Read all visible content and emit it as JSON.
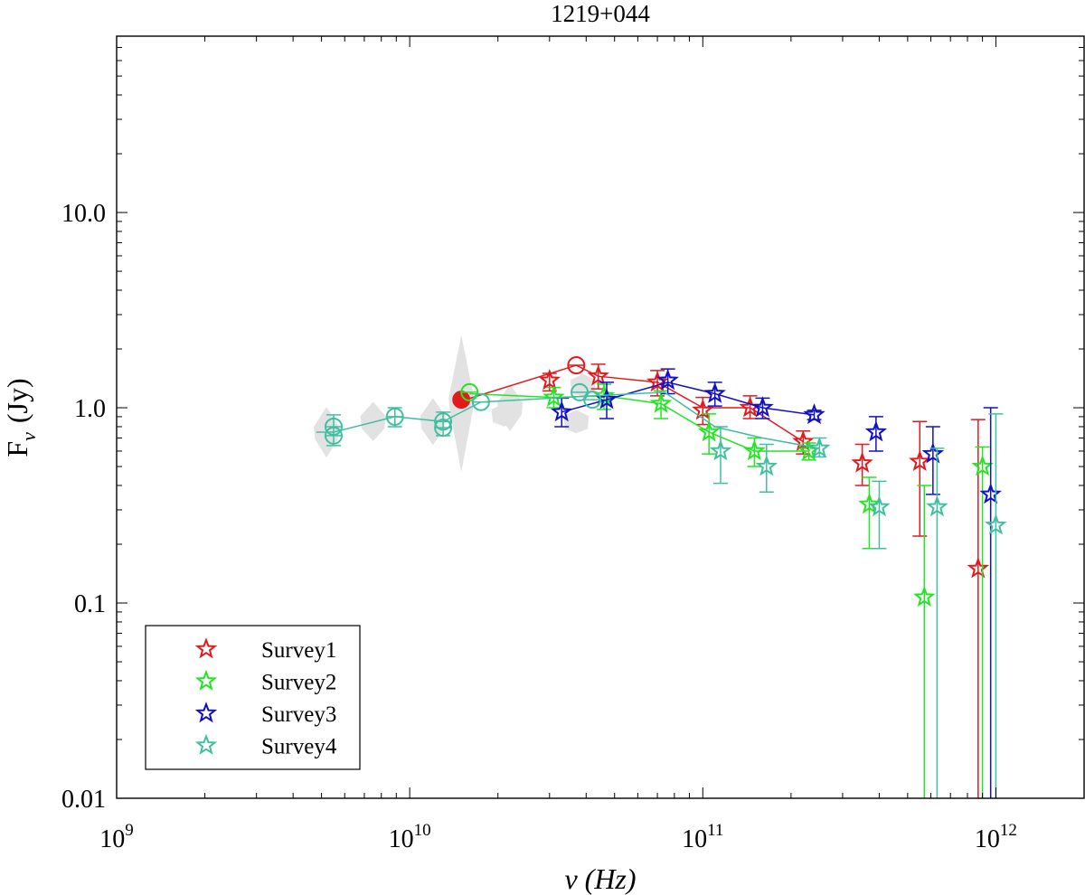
{
  "chart_data": {
    "type": "scatter",
    "title": "1219+044",
    "xlabel": "ν (Hz)",
    "ylabel": {
      "main": "F",
      "sub": "ν",
      "unit": "(Jy)"
    },
    "xscale": "log",
    "yscale": "log",
    "xlim": [
      1000000000.0,
      2000000000000.0
    ],
    "ylim": [
      0.01,
      80
    ],
    "x_ticks": [
      {
        "value": 1000000000.0,
        "base": "10",
        "exp": "9"
      },
      {
        "value": 10000000000.0,
        "base": "10",
        "exp": "10"
      },
      {
        "value": 100000000000.0,
        "base": "10",
        "exp": "11"
      },
      {
        "value": 1000000000000.0,
        "base": "10",
        "exp": "12"
      }
    ],
    "y_ticks": [
      {
        "value": 0.01,
        "label": "0.01"
      },
      {
        "value": 0.1,
        "label": "0.1"
      },
      {
        "value": 1,
        "label": "1.0"
      },
      {
        "value": 10,
        "label": "10.0"
      }
    ],
    "legend_position": "bottom-left",
    "series": [
      {
        "name": "Survey1",
        "color": "#e31a1c",
        "line": [
          [
            15500000000.0,
            1.1
          ],
          [
            37000000000.0,
            1.65
          ],
          [
            44000000000.0,
            1.45
          ],
          [
            70000000000.0,
            1.35
          ],
          [
            100000000000.0,
            1.0
          ],
          [
            145000000000.0,
            1.0
          ],
          [
            220000000000.0,
            0.67
          ]
        ],
        "circles": [
          {
            "x": 15000000000.0,
            "y": 1.1,
            "filled": true
          },
          {
            "x": 37000000000.0,
            "y": 1.65
          }
        ],
        "stars": [
          {
            "x": 30000000000.0,
            "y": 1.38,
            "lo": 1.22,
            "hi": 1.5
          },
          {
            "x": 44000000000.0,
            "y": 1.45,
            "lo": 1.25,
            "hi": 1.67
          },
          {
            "x": 70000000000.0,
            "y": 1.35,
            "lo": 1.15,
            "hi": 1.55
          },
          {
            "x": 100000000000.0,
            "y": 0.97,
            "lo": 0.82,
            "hi": 1.13
          },
          {
            "x": 145000000000.0,
            "y": 1.0,
            "lo": 0.88,
            "hi": 1.15
          },
          {
            "x": 220000000000.0,
            "y": 0.67,
            "lo": 0.58,
            "hi": 0.76
          },
          {
            "x": 350000000000.0,
            "y": 0.52,
            "lo": 0.4,
            "hi": 0.65
          },
          {
            "x": 550000000000.0,
            "y": 0.53,
            "lo": 0.22,
            "hi": 0.85
          },
          {
            "x": 870000000000.0,
            "y": 0.15,
            "lo": 0.01,
            "hi": 0.87
          }
        ]
      },
      {
        "name": "Survey2",
        "color": "#22e622",
        "line": [
          [
            16000000000.0,
            1.18
          ],
          [
            31000000000.0,
            1.13
          ],
          [
            46000000000.0,
            1.15
          ],
          [
            72000000000.0,
            1.05
          ],
          [
            105000000000.0,
            0.75
          ],
          [
            150000000000.0,
            0.6
          ],
          [
            230000000000.0,
            0.6
          ]
        ],
        "circles": [
          {
            "x": 16000000000.0,
            "y": 1.2
          }
        ],
        "stars": [
          {
            "x": 31000000000.0,
            "y": 1.13,
            "lo": 1.0,
            "hi": 1.27
          },
          {
            "x": 46000000000.0,
            "y": 1.15,
            "lo": 0.98,
            "hi": 1.32
          },
          {
            "x": 72000000000.0,
            "y": 1.05,
            "lo": 0.88,
            "hi": 1.22
          },
          {
            "x": 105000000000.0,
            "y": 0.75,
            "lo": 0.58,
            "hi": 0.93
          },
          {
            "x": 150000000000.0,
            "y": 0.6,
            "lo": 0.5,
            "hi": 0.7
          },
          {
            "x": 230000000000.0,
            "y": 0.6,
            "lo": 0.54,
            "hi": 0.66
          },
          {
            "x": 370000000000.0,
            "y": 0.32,
            "lo": 0.19,
            "hi": 0.44
          },
          {
            "x": 570000000000.0,
            "y": 0.107,
            "lo": 0.01,
            "hi": 0.4
          },
          {
            "x": 900000000000.0,
            "y": 0.5,
            "lo": 0.01,
            "hi": 0.63
          }
        ]
      },
      {
        "name": "Survey3",
        "color": "#1010c8",
        "line": [
          [
            33000000000.0,
            0.95
          ],
          [
            47000000000.0,
            1.1
          ],
          [
            76000000000.0,
            1.35
          ],
          [
            110000000000.0,
            1.18
          ],
          [
            160000000000.0,
            1.0
          ],
          [
            240000000000.0,
            0.92
          ]
        ],
        "circles": [],
        "stars": [
          {
            "x": 33000000000.0,
            "y": 0.95,
            "lo": 0.8,
            "hi": 1.12
          },
          {
            "x": 47000000000.0,
            "y": 1.1,
            "lo": 0.88,
            "hi": 1.35
          },
          {
            "x": 76000000000.0,
            "y": 1.38,
            "lo": 1.18,
            "hi": 1.58
          },
          {
            "x": 110000000000.0,
            "y": 1.18,
            "lo": 1.02,
            "hi": 1.35
          },
          {
            "x": 160000000000.0,
            "y": 1.0,
            "lo": 0.88,
            "hi": 1.12
          },
          {
            "x": 240000000000.0,
            "y": 0.92,
            "lo": 0.87,
            "hi": 0.97
          },
          {
            "x": 390000000000.0,
            "y": 0.75,
            "lo": 0.6,
            "hi": 0.9
          },
          {
            "x": 610000000000.0,
            "y": 0.58,
            "lo": 0.36,
            "hi": 0.8
          },
          {
            "x": 960000000000.0,
            "y": 0.36,
            "lo": 0.01,
            "hi": 1.0
          }
        ]
      },
      {
        "name": "Survey4",
        "color": "#40bfa0",
        "line": [
          [
            4800000000.0,
            0.75
          ],
          [
            5500000000.0,
            0.75
          ],
          [
            8900000000.0,
            0.9
          ],
          [
            13000000000.0,
            0.85
          ],
          [
            17500000000.0,
            1.07
          ],
          [
            42000000000.0,
            1.15
          ],
          [
            74000000000.0,
            1.2
          ],
          [
            110000000000.0,
            0.8
          ],
          [
            160000000000.0,
            0.7
          ],
          [
            250000000000.0,
            0.62
          ]
        ],
        "circles": [
          {
            "x": 5500000000.0,
            "y": 0.8,
            "lo": 0.64,
            "hi": 0.92
          },
          {
            "x": 5500000000.0,
            "y": 0.72
          },
          {
            "x": 8900000000.0,
            "y": 0.9,
            "lo": 0.8,
            "hi": 1.0
          },
          {
            "x": 13000000000.0,
            "y": 0.85,
            "lo": 0.72,
            "hi": 0.95
          },
          {
            "x": 13000000000.0,
            "y": 0.79
          },
          {
            "x": 17500000000.0,
            "y": 1.07
          },
          {
            "x": 38000000000.0,
            "y": 1.2
          },
          {
            "x": 42000000000.0,
            "y": 1.1
          }
        ],
        "stars": [
          {
            "x": 115000000000.0,
            "y": 0.6,
            "lo": 0.41,
            "hi": 0.8
          },
          {
            "x": 165000000000.0,
            "y": 0.5,
            "lo": 0.37,
            "hi": 0.65
          },
          {
            "x": 250000000000.0,
            "y": 0.62,
            "lo": 0.56,
            "hi": 0.7
          },
          {
            "x": 400000000000.0,
            "y": 0.31,
            "lo": 0.19,
            "hi": 0.42
          },
          {
            "x": 630000000000.0,
            "y": 0.31,
            "lo": 0.01,
            "hi": 0.62
          },
          {
            "x": 1000000000000.0,
            "y": 0.25,
            "lo": 0.01,
            "hi": 0.93
          }
        ]
      }
    ],
    "background_points": {
      "color": "#e2e2e2",
      "points": [
        {
          "x": 5200000000.0,
          "y": 0.75,
          "hspan": 0.13
        },
        {
          "x": 7500000000.0,
          "y": 0.85,
          "hspan": 0.1
        },
        {
          "x": 12000000000.0,
          "y": 0.85,
          "hspan": 0.12
        },
        {
          "x": 15000000000.0,
          "y": 1.05,
          "hspan": 0.35
        },
        {
          "x": 22000000000.0,
          "y": 1.0,
          "hspan": 0.12
        },
        {
          "x": 21000000000.0,
          "y": 0.92,
          "hspan": 0.06
        },
        {
          "x": 37000000000.0,
          "y": 0.85,
          "hspan": 0.06
        },
        {
          "x": 39000000000.0,
          "y": 1.3,
          "hspan": 0.06
        }
      ]
    }
  }
}
